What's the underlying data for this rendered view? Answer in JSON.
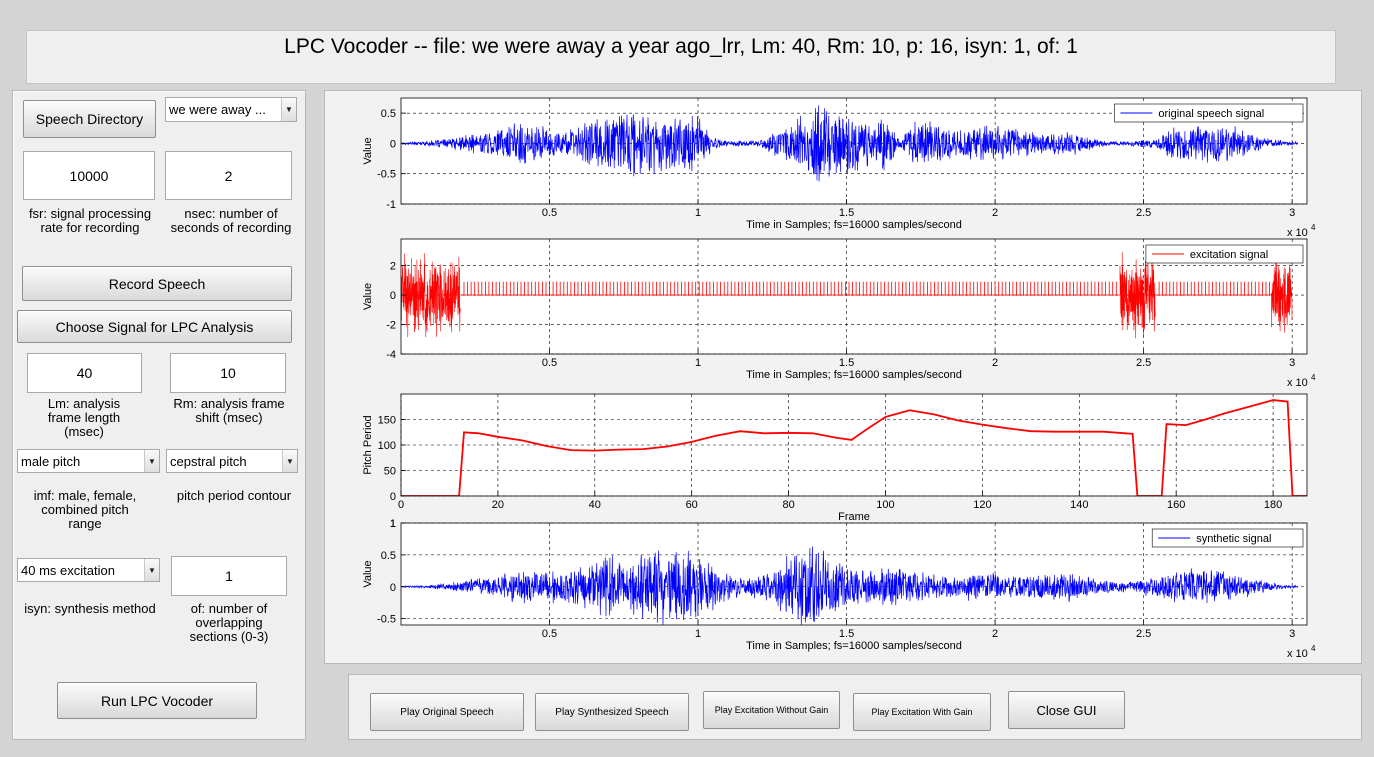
{
  "title": "LPC Vocoder -- file: we were away a year ago_lrr, Lm: 40, Rm: 10, p: 16, isyn: 1, of: 1",
  "controls": {
    "speech_directory_label": "Speech Directory",
    "file_select_value": "we were away ...",
    "fsr_value": "10000",
    "fsr_label": "fsr: signal processing rate for recording",
    "nsec_value": "2",
    "nsec_label": "nsec: number of seconds of recording",
    "record_label": "Record Speech",
    "choose_signal_label": "Choose Signal for LPC Analysis",
    "lm_value": "40",
    "lm_label": "Lm: analysis frame length (msec)",
    "rm_value": "10",
    "rm_label": "Rm: analysis frame shift (msec)",
    "imf_select_value": "male pitch",
    "imf_label": "imf: male, female, combined pitch range",
    "pitch_select_value": "cepstral pitch",
    "pitch_label": "pitch period contour",
    "isyn_select_value": "40 ms excitation",
    "isyn_label": "isyn: synthesis method",
    "of_value": "1",
    "of_label": "of: number of overlapping sections (0-3)",
    "run_label": "Run LPC Vocoder"
  },
  "buttons": {
    "play_original": "Play Original Speech",
    "play_synth": "Play Synthesized Speech",
    "play_exc_no_gain": "Play Excitation Without Gain",
    "play_exc_gain": "Play Excitation With Gain",
    "close": "Close GUI"
  },
  "colors": {
    "speech": "#0000ff",
    "excitation": "#ff0000",
    "pitch": "#ff0000",
    "synthetic": "#0000ff",
    "panel": "#efefef",
    "background": "#d4d4d4"
  },
  "chart_data": [
    {
      "type": "line",
      "name": "original-speech",
      "title": "",
      "xlabel": "Time in Samples; fs=16000 samples/second",
      "ylabel": "Value",
      "xlim": [
        0,
        30500
      ],
      "ylim": [
        -1,
        0.75
      ],
      "xticks": [
        5000,
        10000,
        15000,
        20000,
        25000,
        30000
      ],
      "xtick_labels": [
        "0.5",
        "1",
        "1.5",
        "2",
        "2.5",
        "3"
      ],
      "yticks": [
        -1,
        -0.5,
        0,
        0.5
      ],
      "ytick_labels": [
        "-1",
        "-0.5",
        "0",
        "0.5"
      ],
      "x_exponent": "x 10",
      "x_exponent_power": "4",
      "grid": true,
      "legend": "original speech signal",
      "legend_position": "top-right",
      "envelope": [
        [
          0,
          0.02
        ],
        [
          800,
          0.04
        ],
        [
          1500,
          0.08
        ],
        [
          2500,
          0.18
        ],
        [
          3500,
          0.3
        ],
        [
          4000,
          0.42
        ],
        [
          4800,
          0.32
        ],
        [
          5500,
          0.2
        ],
        [
          6200,
          0.4
        ],
        [
          7000,
          0.55
        ],
        [
          8000,
          0.62
        ],
        [
          8800,
          0.52
        ],
        [
          9500,
          0.6
        ],
        [
          10000,
          0.5
        ],
        [
          10500,
          0.12
        ],
        [
          11000,
          0.04
        ],
        [
          12000,
          0.06
        ],
        [
          13000,
          0.32
        ],
        [
          14000,
          0.72
        ],
        [
          15000,
          0.6
        ],
        [
          15800,
          0.4
        ],
        [
          16300,
          0.45
        ],
        [
          16800,
          0.1
        ],
        [
          17200,
          0.35
        ],
        [
          18000,
          0.42
        ],
        [
          18800,
          0.25
        ],
        [
          19500,
          0.33
        ],
        [
          20500,
          0.28
        ],
        [
          21500,
          0.2
        ],
        [
          22500,
          0.22
        ],
        [
          23300,
          0.1
        ],
        [
          23800,
          0.04
        ],
        [
          24500,
          0.05
        ],
        [
          25500,
          0.1
        ],
        [
          26000,
          0.3
        ],
        [
          27000,
          0.36
        ],
        [
          28000,
          0.32
        ],
        [
          29000,
          0.1
        ],
        [
          30000,
          0.03
        ]
      ]
    },
    {
      "type": "line",
      "name": "excitation",
      "title": "",
      "xlabel": "Time in Samples; fs=16000 samples/second",
      "ylabel": "Value",
      "xlim": [
        0,
        30500
      ],
      "ylim": [
        -4,
        3.8
      ],
      "xticks": [
        5000,
        10000,
        15000,
        20000,
        25000,
        30000
      ],
      "xtick_labels": [
        "0.5",
        "1",
        "1.5",
        "2",
        "2.5",
        "3"
      ],
      "yticks": [
        -4,
        -2,
        0,
        2
      ],
      "ytick_labels": [
        "-4",
        "-2",
        "0",
        "2"
      ],
      "x_exponent": "x 10",
      "x_exponent_power": "4",
      "grid": true,
      "legend": "excitation signal",
      "legend_position": "top-right",
      "noise_regions": [
        [
          0,
          2000,
          3.0
        ],
        [
          24200,
          25400,
          3.0
        ],
        [
          29300,
          30000,
          2.8
        ]
      ],
      "pulse_height": 0.9,
      "pulse_spacing": 120
    },
    {
      "type": "line",
      "name": "pitch-period",
      "title": "",
      "xlabel": "Frame",
      "ylabel": "Pitch Period",
      "xlim": [
        0,
        187
      ],
      "ylim": [
        0,
        200
      ],
      "xticks": [
        0,
        20,
        40,
        60,
        80,
        100,
        120,
        140,
        160,
        180
      ],
      "xtick_labels": [
        "0",
        "20",
        "40",
        "60",
        "80",
        "100",
        "120",
        "140",
        "160",
        "180"
      ],
      "yticks": [
        0,
        50,
        100,
        150
      ],
      "ytick_labels": [
        "0",
        "50",
        "100",
        "150"
      ],
      "grid": true,
      "x": [
        0,
        12,
        13,
        16,
        20,
        25,
        30,
        35,
        40,
        45,
        50,
        55,
        60,
        65,
        70,
        75,
        80,
        85,
        90,
        93,
        96,
        100,
        105,
        110,
        115,
        120,
        125,
        130,
        135,
        140,
        145,
        151,
        152,
        157,
        158,
        162,
        166,
        170,
        175,
        180,
        183,
        184,
        187
      ],
      "y": [
        0,
        0,
        125,
        123,
        116,
        109,
        98,
        90,
        89,
        91,
        92,
        97,
        106,
        118,
        127,
        123,
        124,
        123,
        114,
        110,
        130,
        155,
        168,
        160,
        148,
        140,
        133,
        127,
        126,
        126,
        126,
        122,
        0,
        0,
        141,
        139,
        150,
        162,
        175,
        188,
        185,
        0,
        0
      ]
    },
    {
      "type": "line",
      "name": "synthetic",
      "title": "",
      "xlabel": "Time in Samples; fs=16000 samples/second",
      "ylabel": "Value",
      "xlim": [
        0,
        30500
      ],
      "ylim": [
        -0.6,
        1
      ],
      "xticks": [
        5000,
        10000,
        15000,
        20000,
        25000,
        30000
      ],
      "xtick_labels": [
        "0.5",
        "1",
        "1.5",
        "2",
        "2.5",
        "3"
      ],
      "yticks": [
        -0.5,
        0,
        0.5,
        1
      ],
      "ytick_labels": [
        "-0.5",
        "0",
        "0.5",
        "1"
      ],
      "x_exponent": "x 10",
      "x_exponent_power": "4",
      "grid": true,
      "legend": "synthetic signal",
      "legend_position": "top-right",
      "envelope": [
        [
          0,
          0.01
        ],
        [
          1000,
          0.03
        ],
        [
          2000,
          0.1
        ],
        [
          3000,
          0.2
        ],
        [
          4000,
          0.3
        ],
        [
          5000,
          0.26
        ],
        [
          6000,
          0.34
        ],
        [
          7000,
          0.55
        ],
        [
          7500,
          0.45
        ],
        [
          8500,
          0.6
        ],
        [
          9500,
          0.65
        ],
        [
          10500,
          0.38
        ],
        [
          11500,
          0.15
        ],
        [
          12500,
          0.28
        ],
        [
          13500,
          0.8
        ],
        [
          14500,
          0.55
        ],
        [
          15500,
          0.3
        ],
        [
          16500,
          0.38
        ],
        [
          17500,
          0.25
        ],
        [
          18500,
          0.2
        ],
        [
          19500,
          0.24
        ],
        [
          20500,
          0.2
        ],
        [
          21500,
          0.22
        ],
        [
          22500,
          0.26
        ],
        [
          23500,
          0.12
        ],
        [
          24500,
          0.08
        ],
        [
          25500,
          0.2
        ],
        [
          26500,
          0.33
        ],
        [
          27500,
          0.3
        ],
        [
          28500,
          0.18
        ],
        [
          29500,
          0.05
        ],
        [
          30000,
          0.02
        ]
      ]
    }
  ]
}
